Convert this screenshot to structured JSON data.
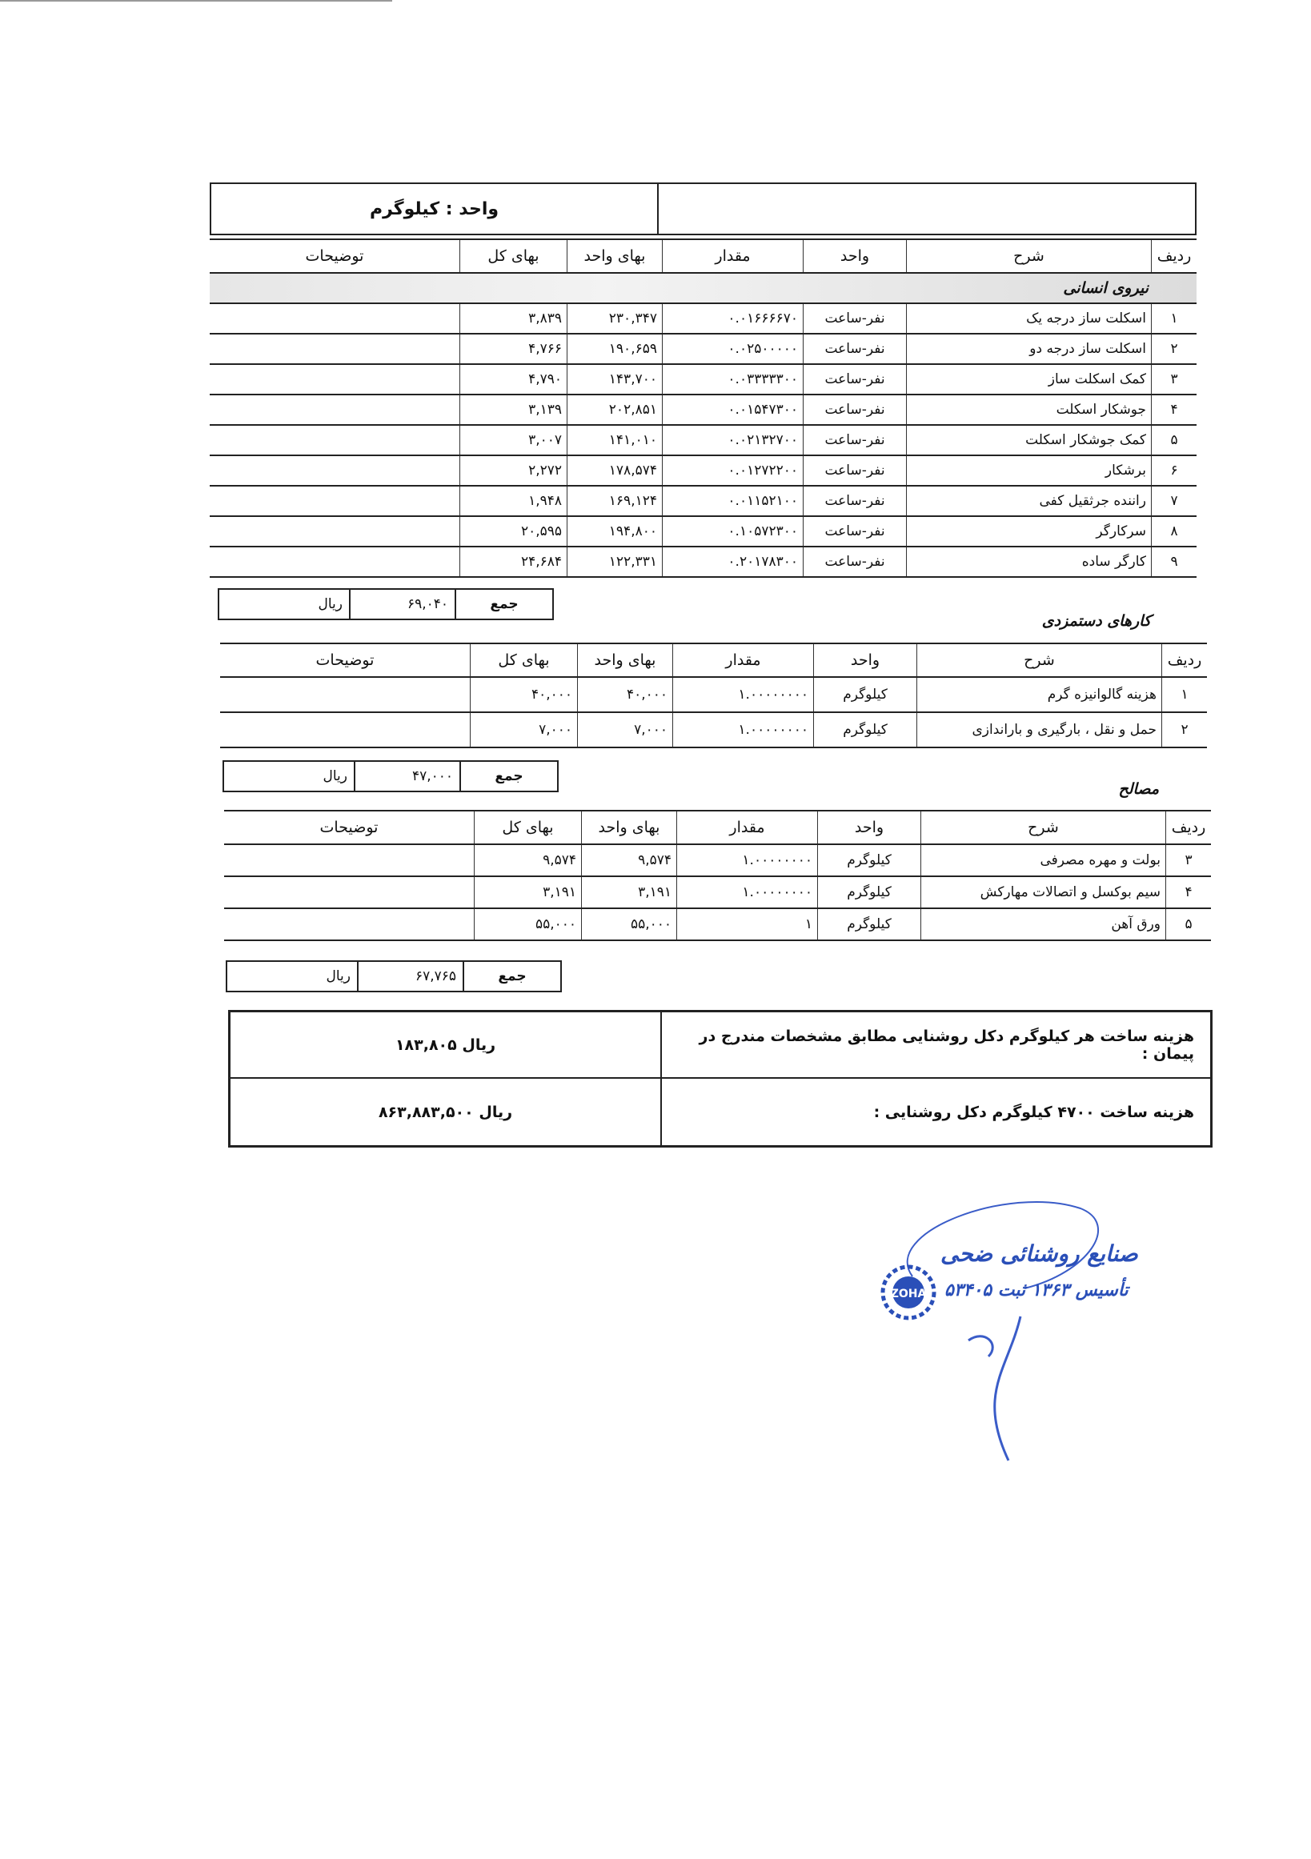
{
  "header": {
    "unit_label": "واحد : کیلوگرم"
  },
  "columns": {
    "no": "ردیف",
    "desc": "شرح",
    "unit": "واحد",
    "qty": "مقدار",
    "unit_price": "بهای واحد",
    "total_price": "بهای کل",
    "notes": "توضیحات"
  },
  "sum_label": "جمع",
  "currency": "ریال",
  "labor": {
    "title": "نیروی انسانی",
    "rows": [
      {
        "no": "۱",
        "desc": "اسکلت ساز درجه یک",
        "unit": "نفر-ساعت",
        "qty": "۰.۰۱۶۶۶۶۷۰",
        "unit_price": "۲۳۰,۳۴۷",
        "total_price": "۳,۸۳۹"
      },
      {
        "no": "۲",
        "desc": "اسکلت ساز درجه دو",
        "unit": "نفر-ساعت",
        "qty": "۰.۰۲۵۰۰۰۰۰",
        "unit_price": "۱۹۰,۶۵۹",
        "total_price": "۴,۷۶۶"
      },
      {
        "no": "۳",
        "desc": "کمک اسکلت ساز",
        "unit": "نفر-ساعت",
        "qty": "۰.۰۳۳۳۳۳۰۰",
        "unit_price": "۱۴۳,۷۰۰",
        "total_price": "۴,۷۹۰"
      },
      {
        "no": "۴",
        "desc": "جوشکار اسکلت",
        "unit": "نفر-ساعت",
        "qty": "۰.۰۱۵۴۷۳۰۰",
        "unit_price": "۲۰۲,۸۵۱",
        "total_price": "۳,۱۳۹"
      },
      {
        "no": "۵",
        "desc": "کمک جوشکار اسکلت",
        "unit": "نفر-ساعت",
        "qty": "۰.۰۲۱۳۲۷۰۰",
        "unit_price": "۱۴۱,۰۱۰",
        "total_price": "۳,۰۰۷"
      },
      {
        "no": "۶",
        "desc": "برشکار",
        "unit": "نفر-ساعت",
        "qty": "۰.۰۱۲۷۲۲۰۰",
        "unit_price": "۱۷۸,۵۷۴",
        "total_price": "۲,۲۷۲"
      },
      {
        "no": "۷",
        "desc": "راننده جرثقیل کفی",
        "unit": "نفر-ساعت",
        "qty": "۰.۰۱۱۵۲۱۰۰",
        "unit_price": "۱۶۹,۱۲۴",
        "total_price": "۱,۹۴۸"
      },
      {
        "no": "۸",
        "desc": "سرکارگر",
        "unit": "نفر-ساعت",
        "qty": "۰.۱۰۵۷۲۳۰۰",
        "unit_price": "۱۹۴,۸۰۰",
        "total_price": "۲۰,۵۹۵"
      },
      {
        "no": "۹",
        "desc": "کارگر ساده",
        "unit": "نفر-ساعت",
        "qty": "۰.۲۰۱۷۸۳۰۰",
        "unit_price": "۱۲۲,۳۳۱",
        "total_price": "۲۴,۶۸۴"
      }
    ],
    "sum": "۶۹,۰۴۰"
  },
  "contract_work": {
    "title": "کارهای دستمزدی",
    "rows": [
      {
        "no": "۱",
        "desc": "هزینه گالوانیزه گرم",
        "unit": "کیلوگرم",
        "qty": "۱.۰۰۰۰۰۰۰۰",
        "unit_price": "۴۰,۰۰۰",
        "total_price": "۴۰,۰۰۰"
      },
      {
        "no": "۲",
        "desc": "حمل و نقل ، بارگیری و باراندازی",
        "unit": "کیلوگرم",
        "qty": "۱.۰۰۰۰۰۰۰۰",
        "unit_price": "۷,۰۰۰",
        "total_price": "۷,۰۰۰"
      }
    ],
    "sum": "۴۷,۰۰۰"
  },
  "materials": {
    "title": "مصالح",
    "rows": [
      {
        "no": "۳",
        "desc": "بولت و مهره مصرفی",
        "unit": "کیلوگرم",
        "qty": "۱.۰۰۰۰۰۰۰۰",
        "unit_price": "۹,۵۷۴",
        "total_price": "۹,۵۷۴"
      },
      {
        "no": "۴",
        "desc": "سیم بوکسل و اتصالات مهارکش",
        "unit": "کیلوگرم",
        "qty": "۱.۰۰۰۰۰۰۰۰",
        "unit_price": "۳,۱۹۱",
        "total_price": "۳,۱۹۱"
      },
      {
        "no": "۵",
        "desc": "ورق آهن",
        "unit": "کیلوگرم",
        "qty": "۱",
        "unit_price": "۵۵,۰۰۰",
        "total_price": "۵۵,۰۰۰"
      }
    ],
    "sum": "۶۷,۷۶۵"
  },
  "summary": {
    "per_kg_label": "هزینه ساخت هر کیلوگرم دکل روشنایی مطابق مشخصات مندرج در پیمان :",
    "per_kg_value": "ریال ۱۸۳,۸۰۵",
    "total_label": "هزینه ساخت ۴۷۰۰ کیلوگرم دکل روشنایی :",
    "total_value": "ریال ۸۶۳,۸۸۳,۵۰۰"
  },
  "stamp": {
    "company": "صنایع روشنائی ضحی",
    "registration": "تأسیس ۱۳۶۳ ثبت ۵۳۴۰۵",
    "logo_text": "ZOHA",
    "color": "#2a4fb8"
  }
}
